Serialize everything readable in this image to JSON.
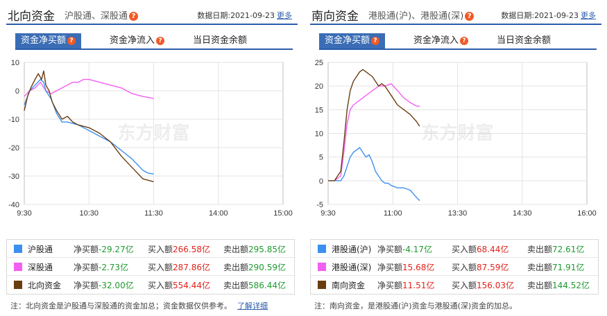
{
  "colors": {
    "blue": "#3b8ff0",
    "pink": "#f35ef3",
    "brown": "#6a3d10",
    "accent": "#2a5cab",
    "red": "#e0221b",
    "green": "#1e9a30"
  },
  "watermark": "东方财富",
  "north": {
    "title": "北向资金",
    "subtitle": "沪股通、深股通",
    "help": "?",
    "date_label": "数据日期:",
    "date": "2021-09-23",
    "more": "更多",
    "tabs": [
      {
        "label": "资金净买额",
        "help": "?"
      },
      {
        "label": "资金净流入",
        "help": "?"
      },
      {
        "label": "当日资金余额"
      }
    ],
    "legend": [
      {
        "name": "沪股通",
        "net_label": "净买额",
        "net": "-29.27亿",
        "buy_label": "买入额",
        "buy": "266.58亿",
        "sell_label": "卖出额",
        "sell": "295.85亿"
      },
      {
        "name": "深股通",
        "net_label": "净买额",
        "net": "-2.73亿",
        "buy_label": "买入额",
        "buy": "287.86亿",
        "sell_label": "卖出额",
        "sell": "290.59亿"
      },
      {
        "name": "北向资金",
        "net_label": "净买额",
        "net": "-32.00亿",
        "buy_label": "买入额",
        "buy": "554.44亿",
        "sell_label": "卖出额",
        "sell": "586.44亿"
      }
    ],
    "note": "注：北向资金是沪股通与深股通的资金加总；资金数据仅供参考。",
    "note_link": "了解详细"
  },
  "south": {
    "title": "南向资金",
    "subtitle": "港股通(沪)、港股通(深)",
    "help": "?",
    "date_label": "数据日期:",
    "date": "2021-09-23",
    "more": "更多",
    "tabs": [
      {
        "label": "资金净买额",
        "help": "?"
      },
      {
        "label": "资金净流入",
        "help": "?"
      },
      {
        "label": "当日资金余额"
      }
    ],
    "legend": [
      {
        "name": "港股通(沪)",
        "net_label": "净买额",
        "net": "-4.17亿",
        "buy_label": "买入额",
        "buy": "68.44亿",
        "sell_label": "卖出额",
        "sell": "72.61亿"
      },
      {
        "name": "港股通(深)",
        "net_label": "净买额",
        "net": "15.68亿",
        "buy_label": "买入额",
        "buy": "87.59亿",
        "sell_label": "卖出额",
        "sell": "71.91亿"
      },
      {
        "name": "南向资金",
        "net_label": "净买额",
        "net": "11.51亿",
        "buy_label": "买入额",
        "buy": "156.03亿",
        "sell_label": "卖出额",
        "sell": "144.52亿"
      }
    ],
    "note": "注：南向资金，是港股通(沪)资金与港股通(深)资金的加总。"
  },
  "chart_data": [
    {
      "type": "line",
      "title": "",
      "xlabel": "",
      "ylabel": "",
      "x_ticks": [
        "9:30",
        "10:30",
        "11:30",
        "14:00",
        "15:00"
      ],
      "y_ticks": [
        10,
        0,
        -10,
        -20,
        -30,
        -40
      ],
      "ylim": [
        -40,
        10
      ],
      "xlim": [
        0,
        240
      ],
      "grid": true,
      "series": [
        {
          "name": "沪股通",
          "color": "#3b8ff0",
          "x": [
            0,
            5,
            10,
            15,
            18,
            20,
            25,
            30,
            35,
            40,
            50,
            60,
            70,
            80,
            90,
            100,
            110,
            115,
            120
          ],
          "y": [
            -5,
            0,
            2,
            4,
            3,
            0,
            -3,
            -8,
            -11,
            -11,
            -12,
            -14,
            -16,
            -18,
            -21,
            -24,
            -28,
            -29,
            -29.3
          ]
        },
        {
          "name": "深股通",
          "color": "#f35ef3",
          "x": [
            0,
            5,
            10,
            15,
            20,
            25,
            30,
            35,
            40,
            45,
            50,
            55,
            60,
            70,
            80,
            90,
            100,
            110,
            120
          ],
          "y": [
            -2,
            0,
            1,
            3,
            0,
            -1,
            0,
            1,
            2,
            3,
            3,
            4,
            4,
            3,
            2,
            1,
            -1,
            -2,
            -2.7
          ]
        },
        {
          "name": "北向资金",
          "color": "#6a3d10",
          "x": [
            0,
            3,
            6,
            10,
            13,
            16,
            18,
            20,
            23,
            26,
            30,
            35,
            40,
            45,
            50,
            60,
            70,
            80,
            90,
            100,
            110,
            115,
            120
          ],
          "y": [
            -7,
            -2,
            1,
            4,
            6,
            4,
            7,
            2,
            0,
            -4,
            -7,
            -10,
            -9,
            -11,
            -12,
            -13,
            -15,
            -18,
            -23,
            -27,
            -31,
            -31.5,
            -32
          ]
        }
      ]
    },
    {
      "type": "line",
      "title": "",
      "xlabel": "",
      "ylabel": "",
      "x_ticks": [
        "9:30",
        "11:00",
        "13:30",
        "14:30",
        "16:00"
      ],
      "y_ticks": [
        25,
        20,
        15,
        10,
        5,
        0,
        -5
      ],
      "ylim": [
        -5,
        25
      ],
      "xlim": [
        -20,
        390
      ],
      "grid": true,
      "series": [
        {
          "name": "港股通(沪)",
          "color": "#3b8ff0",
          "x": [
            -20,
            -10,
            0,
            5,
            10,
            15,
            20,
            25,
            30,
            40,
            45,
            50,
            55,
            60,
            65,
            70,
            75,
            80,
            90,
            100,
            110,
            120,
            125
          ],
          "y": [
            0,
            0,
            0,
            1,
            3,
            5,
            6,
            6.5,
            7,
            5,
            5.5,
            4,
            2,
            1,
            0,
            -0.5,
            -0.5,
            -1,
            -1.5,
            -1.5,
            -2,
            -3.5,
            -4.2
          ]
        },
        {
          "name": "港股通(深)",
          "color": "#f35ef3",
          "x": [
            -20,
            -10,
            0,
            5,
            10,
            15,
            20,
            30,
            40,
            50,
            60,
            70,
            80,
            90,
            100,
            110,
            120,
            125
          ],
          "y": [
            0,
            0,
            1,
            6,
            12,
            15,
            16,
            17,
            18,
            19,
            20,
            20,
            20.5,
            19,
            17.5,
            16.5,
            15.8,
            15.7
          ]
        },
        {
          "name": "南向资金",
          "color": "#6a3d10",
          "x": [
            -20,
            -10,
            0,
            5,
            10,
            15,
            20,
            25,
            30,
            35,
            40,
            50,
            55,
            60,
            65,
            70,
            80,
            90,
            100,
            110,
            120,
            125
          ],
          "y": [
            0,
            0,
            2,
            8,
            15,
            19,
            21,
            22,
            23,
            23.5,
            23,
            22,
            21,
            20,
            20.5,
            20,
            18,
            16,
            15,
            14,
            12.5,
            11.5
          ]
        }
      ]
    }
  ]
}
